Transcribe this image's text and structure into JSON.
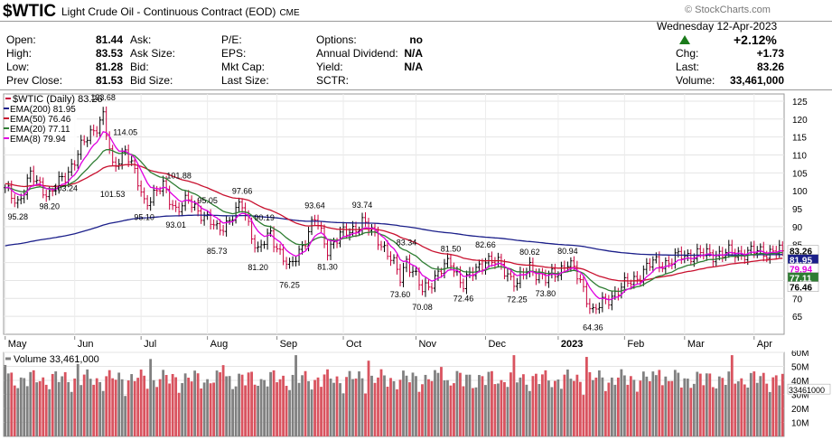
{
  "header": {
    "symbol": "$WTIC",
    "description": "Light Crude Oil - Continuous Contract (EOD)",
    "exchange": "CME",
    "logo": "© StockCharts.com",
    "date": "Wednesday 12-Apr-2023",
    "change_pct": "+2.12%",
    "direction_icon": "up-triangle-icon",
    "up_color": "#1a7a1a",
    "quote": [
      [
        {
          "label": "Open:",
          "value": "81.44"
        },
        {
          "label": "Ask:",
          "value": ""
        },
        {
          "label": "P/E:",
          "value": ""
        },
        {
          "label": "Options:",
          "value": "no"
        }
      ],
      [
        {
          "label": "High:",
          "value": "83.53"
        },
        {
          "label": "Ask Size:",
          "value": ""
        },
        {
          "label": "EPS:",
          "value": ""
        },
        {
          "label": "Annual Dividend:",
          "value": "N/A"
        }
      ],
      [
        {
          "label": "Low:",
          "value": "81.28"
        },
        {
          "label": "Bid:",
          "value": ""
        },
        {
          "label": "Mkt Cap:",
          "value": ""
        },
        {
          "label": "Yield:",
          "value": "N/A"
        }
      ],
      [
        {
          "label": "Prev Close:",
          "value": "81.53"
        },
        {
          "label": "Bid Size:",
          "value": ""
        },
        {
          "label": "Last Size:",
          "value": ""
        },
        {
          "label": "SCTR:",
          "value": ""
        }
      ]
    ],
    "right": [
      {
        "label": "Chg:",
        "value": "+1.73"
      },
      {
        "label": "Last:",
        "value": "83.26"
      },
      {
        "label": "Volume:",
        "value": "33,461,000"
      }
    ]
  },
  "chart_data": [
    {
      "type": "line",
      "title": "$WTIC (Daily) 83.26",
      "legend": [
        {
          "name": "EMA(200) 81.95",
          "color": "#1b1f8a"
        },
        {
          "name": "EMA(50) 76.46",
          "color": "#c8102e"
        },
        {
          "name": "EMA(20) 77.11",
          "color": "#2e7d32"
        },
        {
          "name": "EMA(8) 79.94",
          "color": "#e000e0"
        }
      ],
      "legend_position": "top-left",
      "price_color": "#c8003c",
      "ylim": [
        60,
        127
      ],
      "yticks": [
        65,
        70,
        75,
        80,
        85,
        90,
        95,
        100,
        105,
        110,
        115,
        120,
        125
      ],
      "months": [
        "May",
        "Jun",
        "Jul",
        "Aug",
        "Sep",
        "Oct",
        "Nov",
        "Dec",
        "2023",
        "Feb",
        "Mar",
        "Apr"
      ],
      "right_labels": [
        {
          "text": "83.26",
          "value": 83.26,
          "bg": "#ffffff",
          "fg": "#000000"
        },
        {
          "text": "79.94",
          "value": 79.94,
          "bg": "#ffffff",
          "fg": "#e000e0"
        },
        {
          "text": "81.95",
          "value": 81.95,
          "bg": "#1b1f8a",
          "fg": "#ffffff"
        },
        {
          "text": "77.11",
          "value": 77.11,
          "bg": "#2e7d32",
          "fg": "#ffffff"
        },
        {
          "text": "76.46",
          "value": 76.46,
          "bg": "#ffffff",
          "fg": "#000000"
        }
      ],
      "annotations": [
        {
          "text": "95.28",
          "t": 4,
          "v": 95.28,
          "pos": "below"
        },
        {
          "text": "98.20",
          "t": 14,
          "v": 98.2,
          "pos": "below"
        },
        {
          "text": "103.24",
          "t": 19,
          "v": 103.24,
          "pos": "below"
        },
        {
          "text": "123.68",
          "t": 31,
          "v": 123.68,
          "pos": "above"
        },
        {
          "text": "114.05",
          "t": 38,
          "v": 114.05,
          "pos": "above"
        },
        {
          "text": "101.53",
          "t": 34,
          "v": 101.53,
          "pos": "below"
        },
        {
          "text": "95.10",
          "t": 44,
          "v": 95.1,
          "pos": "below"
        },
        {
          "text": "101.88",
          "t": 55,
          "v": 101.88,
          "pos": "above"
        },
        {
          "text": "93.01",
          "t": 54,
          "v": 93.01,
          "pos": "below"
        },
        {
          "text": "95.05",
          "t": 64,
          "v": 95.05,
          "pos": "above"
        },
        {
          "text": "85.73",
          "t": 67,
          "v": 85.73,
          "pos": "below"
        },
        {
          "text": "97.66",
          "t": 75,
          "v": 97.66,
          "pos": "above"
        },
        {
          "text": "90.19",
          "t": 82,
          "v": 90.19,
          "pos": "above"
        },
        {
          "text": "81.20",
          "t": 80,
          "v": 81.2,
          "pos": "below"
        },
        {
          "text": "76.25",
          "t": 90,
          "v": 76.25,
          "pos": "below"
        },
        {
          "text": "93.64",
          "t": 98,
          "v": 93.64,
          "pos": "above"
        },
        {
          "text": "81.30",
          "t": 102,
          "v": 81.3,
          "pos": "below"
        },
        {
          "text": "93.74",
          "t": 113,
          "v": 93.74,
          "pos": "above"
        },
        {
          "text": "83.34",
          "t": 127,
          "v": 83.34,
          "pos": "above"
        },
        {
          "text": "73.60",
          "t": 125,
          "v": 73.6,
          "pos": "below"
        },
        {
          "text": "70.08",
          "t": 132,
          "v": 70.08,
          "pos": "below"
        },
        {
          "text": "81.50",
          "t": 141,
          "v": 81.5,
          "pos": "above"
        },
        {
          "text": "82.66",
          "t": 152,
          "v": 82.66,
          "pos": "above"
        },
        {
          "text": "72.46",
          "t": 145,
          "v": 72.46,
          "pos": "below"
        },
        {
          "text": "80.62",
          "t": 166,
          "v": 80.62,
          "pos": "above"
        },
        {
          "text": "72.25",
          "t": 162,
          "v": 72.25,
          "pos": "below"
        },
        {
          "text": "73.80",
          "t": 171,
          "v": 73.8,
          "pos": "below"
        },
        {
          "text": "80.94",
          "t": 178,
          "v": 80.94,
          "pos": "above"
        },
        {
          "text": "64.36",
          "t": 186,
          "v": 64.36,
          "pos": "below"
        }
      ],
      "month_index": [
        0,
        22,
        43,
        64,
        86,
        107,
        130,
        152,
        175,
        196,
        215,
        237
      ],
      "ohlc_count": 247,
      "anchors": [
        {
          "t": 0,
          "v": 100
        },
        {
          "t": 4,
          "v": 97
        },
        {
          "t": 8,
          "v": 104
        },
        {
          "t": 14,
          "v": 99
        },
        {
          "t": 19,
          "v": 104
        },
        {
          "t": 24,
          "v": 112
        },
        {
          "t": 31,
          "v": 121
        },
        {
          "t": 34,
          "v": 106
        },
        {
          "t": 38,
          "v": 112
        },
        {
          "t": 44,
          "v": 97
        },
        {
          "t": 50,
          "v": 101
        },
        {
          "t": 54,
          "v": 95
        },
        {
          "t": 58,
          "v": 97
        },
        {
          "t": 62,
          "v": 94
        },
        {
          "t": 67,
          "v": 89
        },
        {
          "t": 71,
          "v": 92
        },
        {
          "t": 75,
          "v": 96
        },
        {
          "t": 80,
          "v": 83
        },
        {
          "t": 84,
          "v": 88
        },
        {
          "t": 90,
          "v": 78
        },
        {
          "t": 98,
          "v": 92
        },
        {
          "t": 102,
          "v": 84
        },
        {
          "t": 107,
          "v": 88
        },
        {
          "t": 113,
          "v": 91
        },
        {
          "t": 118,
          "v": 87
        },
        {
          "t": 125,
          "v": 76
        },
        {
          "t": 127,
          "v": 81
        },
        {
          "t": 132,
          "v": 72
        },
        {
          "t": 137,
          "v": 77
        },
        {
          "t": 141,
          "v": 80
        },
        {
          "t": 145,
          "v": 74
        },
        {
          "t": 152,
          "v": 81
        },
        {
          "t": 157,
          "v": 79
        },
        {
          "t": 162,
          "v": 74
        },
        {
          "t": 166,
          "v": 79
        },
        {
          "t": 171,
          "v": 75
        },
        {
          "t": 178,
          "v": 80
        },
        {
          "t": 182,
          "v": 75
        },
        {
          "t": 186,
          "v": 66
        },
        {
          "t": 192,
          "v": 71
        },
        {
          "t": 200,
          "v": 76
        },
        {
          "t": 205,
          "v": 80
        },
        {
          "t": 210,
          "v": 80
        },
        {
          "t": 214,
          "v": 82
        },
        {
          "t": 246,
          "v": 83.26
        }
      ]
    },
    {
      "type": "bar",
      "title": "Volume 33,461,000",
      "ylim": [
        0,
        60
      ],
      "yticks": [
        "60M",
        "50M",
        "40M",
        "30M",
        "20M",
        "10M"
      ],
      "ytick_values": [
        60,
        50,
        40,
        30,
        20,
        10
      ],
      "last_label": "33461000",
      "last_value": 33.461,
      "up_color": "#808080",
      "down_color": "#d9535f"
    }
  ]
}
